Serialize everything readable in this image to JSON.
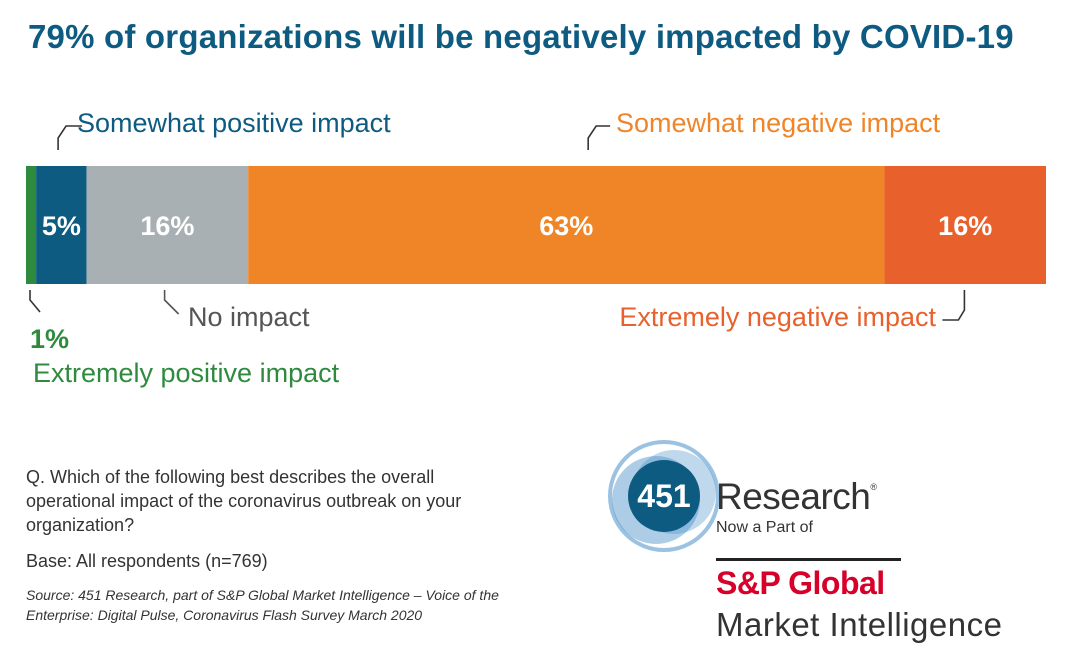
{
  "chart_data": {
    "type": "bar",
    "orientation": "horizontal-stacked-100",
    "title": "79% of organizations will be negatively impacted by COVID-19",
    "xlim": [
      0,
      101
    ],
    "series": [
      {
        "name": "Extremely positive impact",
        "value": 1,
        "label": "1%",
        "color": "#2e8b3e"
      },
      {
        "name": "Somewhat positive impact",
        "value": 5,
        "label": "5%",
        "color": "#0e5b82"
      },
      {
        "name": "No impact",
        "value": 16,
        "label": "16%",
        "color": "#a9b0b3"
      },
      {
        "name": "Somewhat negative impact",
        "value": 63,
        "label": "63%",
        "color": "#f08528"
      },
      {
        "name": "Extremely negative impact",
        "value": 16,
        "label": "16%",
        "color": "#e8612c"
      }
    ],
    "label_colors": {
      "Extremely positive impact": "#2e8b3e",
      "Somewhat positive impact": "#0e5b82",
      "No impact": "#555555",
      "Somewhat negative impact": "#f08528",
      "Extremely negative impact": "#e8612c"
    }
  },
  "question": "Q. Which of the following best describes the overall operational impact of the coronavirus outbreak on your organization?",
  "base": "Base: All respondents (n=769)",
  "source": "Source: 451 Research, part of S&P Global Market Intelligence – Voice of the Enterprise: Digital Pulse, Coronavirus Flash Survey March 2020",
  "logo": {
    "badge": "451",
    "name": "Research",
    "registered": "®",
    "tagline": "Now a Part of",
    "parent_brand": "S&P Global",
    "parent_division": "Market Intelligence",
    "badge_color": "#0e5b82",
    "ring_color": "#4a90c8",
    "brand_red": "#d6002a"
  }
}
